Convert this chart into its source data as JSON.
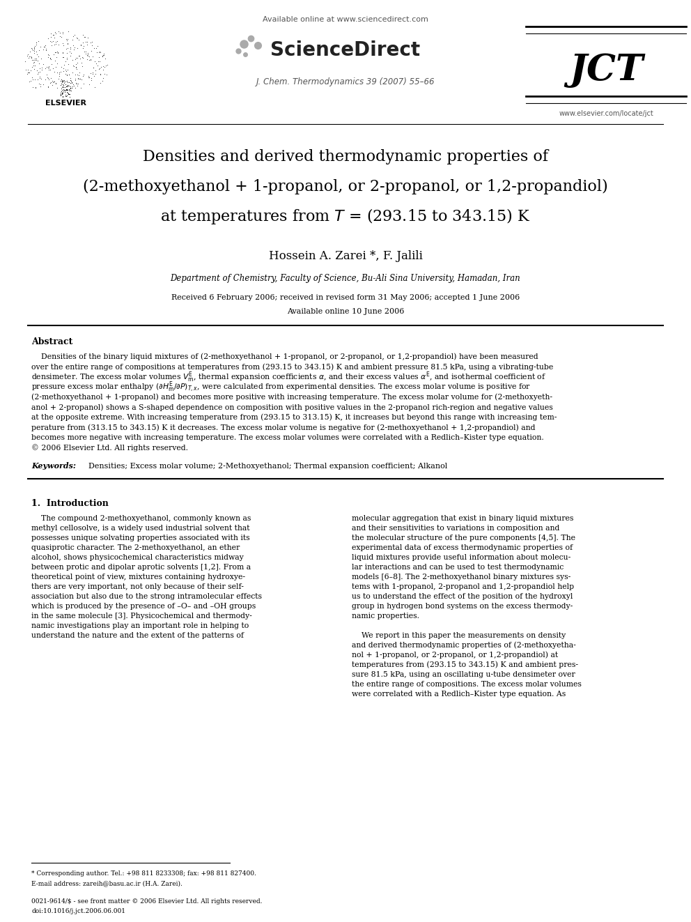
{
  "background_color": "#ffffff",
  "header": {
    "available_online_text": "Available online at www.sciencedirect.com",
    "sciencedirect_text": "ScienceDirect",
    "journal_text": "J. Chem. Thermodynamics 39 (2007) 55–66",
    "elsevier_text": "ELSEVIER",
    "jct_text": "JCT",
    "website_text": "www.elsevier.com/locate/jct"
  },
  "title_line1": "Densities and derived thermodynamic properties of",
  "title_line2": "(2-methoxyethanol + 1-propanol, or 2-propanol, or 1,2-propandiol)",
  "title_line3": "at temperatures from $T$ = (293.15 to 343.15) K",
  "authors": "Hossein A. Zarei *, F. Jalili",
  "affiliation": "Department of Chemistry, Faculty of Science, Bu-Ali Sina University, Hamadan, Iran",
  "received_text": "Received 6 February 2006; received in revised form 31 May 2006; accepted 1 June 2006",
  "available_online": "Available online 10 June 2006",
  "abstract_heading": "Abstract",
  "abstract_lines": [
    "    Densities of the binary liquid mixtures of (2-methoxyethanol + 1-propanol, or 2-propanol, or 1,2-propandiol) have been measured",
    "over the entire range of compositions at temperatures from (293.15 to 343.15) K and ambient pressure 81.5 kPa, using a vibrating-tube",
    "densimeter. The excess molar volumes $V^{\\mathrm{E}}_{\\mathrm{m}}$, thermal expansion coefficients $\\alpha$, and their excess values $\\alpha^{\\mathrm{E}}$, and isothermal coefficient of",
    "pressure excess molar enthalpy $(\\partial H^{\\mathrm{E}}_{\\mathrm{m}}/\\partial P)_{T,x}$, were calculated from experimental densities. The excess molar volume is positive for",
    "(2-methoxyethanol + 1-propanol) and becomes more positive with increasing temperature. The excess molar volume for (2-methoxyeth-",
    "anol + 2-propanol) shows a S-shaped dependence on composition with positive values in the 2-propanol rich-region and negative values",
    "at the opposite extreme. With increasing temperature from (293.15 to 313.15) K, it increases but beyond this range with increasing tem-",
    "perature from (313.15 to 343.15) K it decreases. The excess molar volume is negative for (2-methoxyethanol + 1,2-propandiol) and",
    "becomes more negative with increasing temperature. The excess molar volumes were correlated with a Redlich–Kister type equation.",
    "© 2006 Elsevier Ltd. All rights reserved."
  ],
  "keywords_label": "Keywords:",
  "keywords_text": "  Densities; Excess molar volume; 2-Methoxyethanol; Thermal expansion coefficient; Alkanol",
  "section1_heading": "1.  Introduction",
  "intro_left_lines": [
    "    The compound 2-methoxyethanol, commonly known as",
    "methyl cellosolve, is a widely used industrial solvent that",
    "possesses unique solvating properties associated with its",
    "quasiprotic character. The 2-methoxyethanol, an ether",
    "alcohol, shows physicochemical characteristics midway",
    "between protic and dipolar aprotic solvents [1,2]. From a",
    "theoretical point of view, mixtures containing hydroxye-",
    "thers are very important, not only because of their self-",
    "association but also due to the strong intramolecular effects",
    "which is produced by the presence of –O– and –OH groups",
    "in the same molecule [3]. Physicochemical and thermody-",
    "namic investigations play an important role in helping to",
    "understand the nature and the extent of the patterns of"
  ],
  "intro_right_lines1": [
    "molecular aggregation that exist in binary liquid mixtures",
    "and their sensitivities to variations in composition and",
    "the molecular structure of the pure components [4,5]. The",
    "experimental data of excess thermodynamic properties of",
    "liquid mixtures provide useful information about molecu-",
    "lar interactions and can be used to test thermodynamic",
    "models [6–8]. The 2-methoxyethanol binary mixtures sys-",
    "tems with 1-propanol, 2-propanol and 1,2-propandiol help",
    "us to understand the effect of the position of the hydroxyl",
    "group in hydrogen bond systems on the excess thermody-",
    "namic properties."
  ],
  "intro_right_lines2": [
    "    We report in this paper the measurements on density",
    "and derived thermodynamic properties of (2-methoxyetha-",
    "nol + 1-propanol, or 2-propanol, or 1,2-propandiol) at",
    "temperatures from (293.15 to 343.15) K and ambient pres-",
    "sure 81.5 kPa, using an oscillating u-tube densimeter over",
    "the entire range of compositions. The excess molar volumes",
    "were correlated with a Redlich–Kister type equation. As"
  ],
  "footnote_star": "* Corresponding author. Tel.: +98 811 8233308; fax: +98 811 827400.",
  "footnote_email": "E-mail address: zareih@basu.ac.ir (H.A. Zarei).",
  "footer_line1": "0021-9614/$ - see front matter © 2006 Elsevier Ltd. All rights reserved.",
  "footer_line2": "doi:10.1016/j.jct.2006.06.001"
}
